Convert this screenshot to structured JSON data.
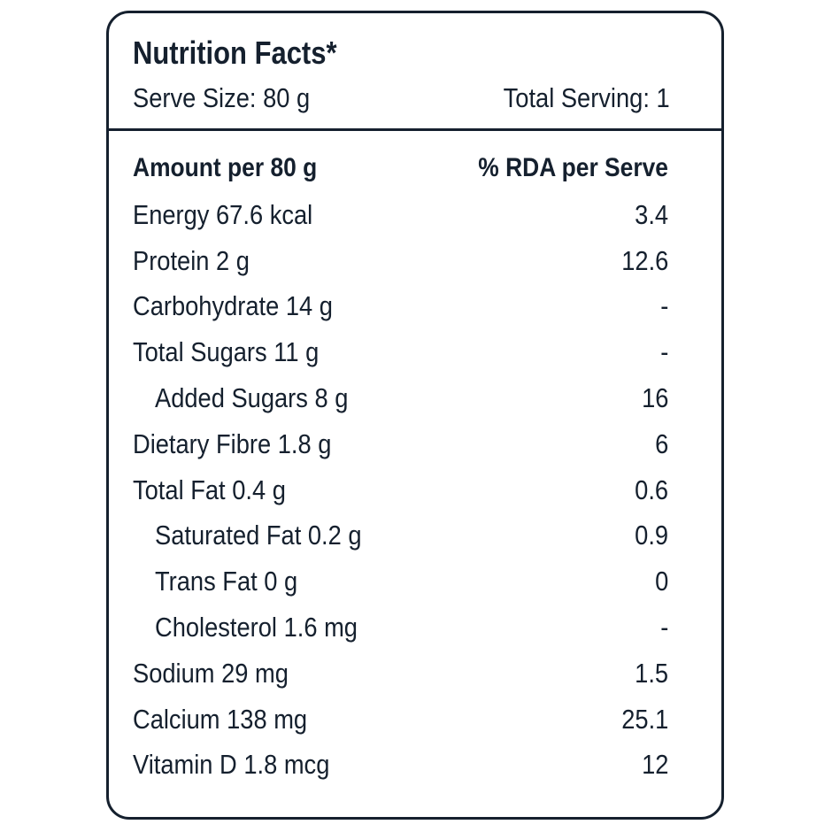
{
  "label": {
    "title": "Nutrition Facts*",
    "serve_size": "Serve Size: 80 g",
    "total_serving": "Total Serving: 1",
    "header_amount": "Amount per 80 g",
    "header_rda": "% RDA per Serve",
    "rows": [
      {
        "name": "Energy 67.6 kcal",
        "rda": "3.4"
      },
      {
        "name": "Protein 2 g",
        "rda": "12.6"
      },
      {
        "name": "Carbohydrate 14 g",
        "rda": "-"
      },
      {
        "name": "Total Sugars 11 g",
        "rda": "-"
      },
      {
        "name": "Added Sugars 8 g",
        "rda": "16"
      },
      {
        "name": "Dietary Fibre 1.8 g",
        "rda": "6"
      },
      {
        "name": "Total Fat 0.4 g",
        "rda": "0.6"
      },
      {
        "name": "Saturated Fat 0.2 g",
        "rda": "0.9"
      },
      {
        "name": "Trans Fat 0 g",
        "rda": "0"
      },
      {
        "name": "Cholesterol 1.6 mg",
        "rda": "-"
      },
      {
        "name": "Sodium 29 mg",
        "rda": "1.5"
      },
      {
        "name": "Calcium 138 mg",
        "rda": "25.1"
      },
      {
        "name": "Vitamin D 1.8 mcg",
        "rda": "12"
      }
    ]
  },
  "colors": {
    "ink": "#15202e",
    "background": "#ffffff"
  }
}
